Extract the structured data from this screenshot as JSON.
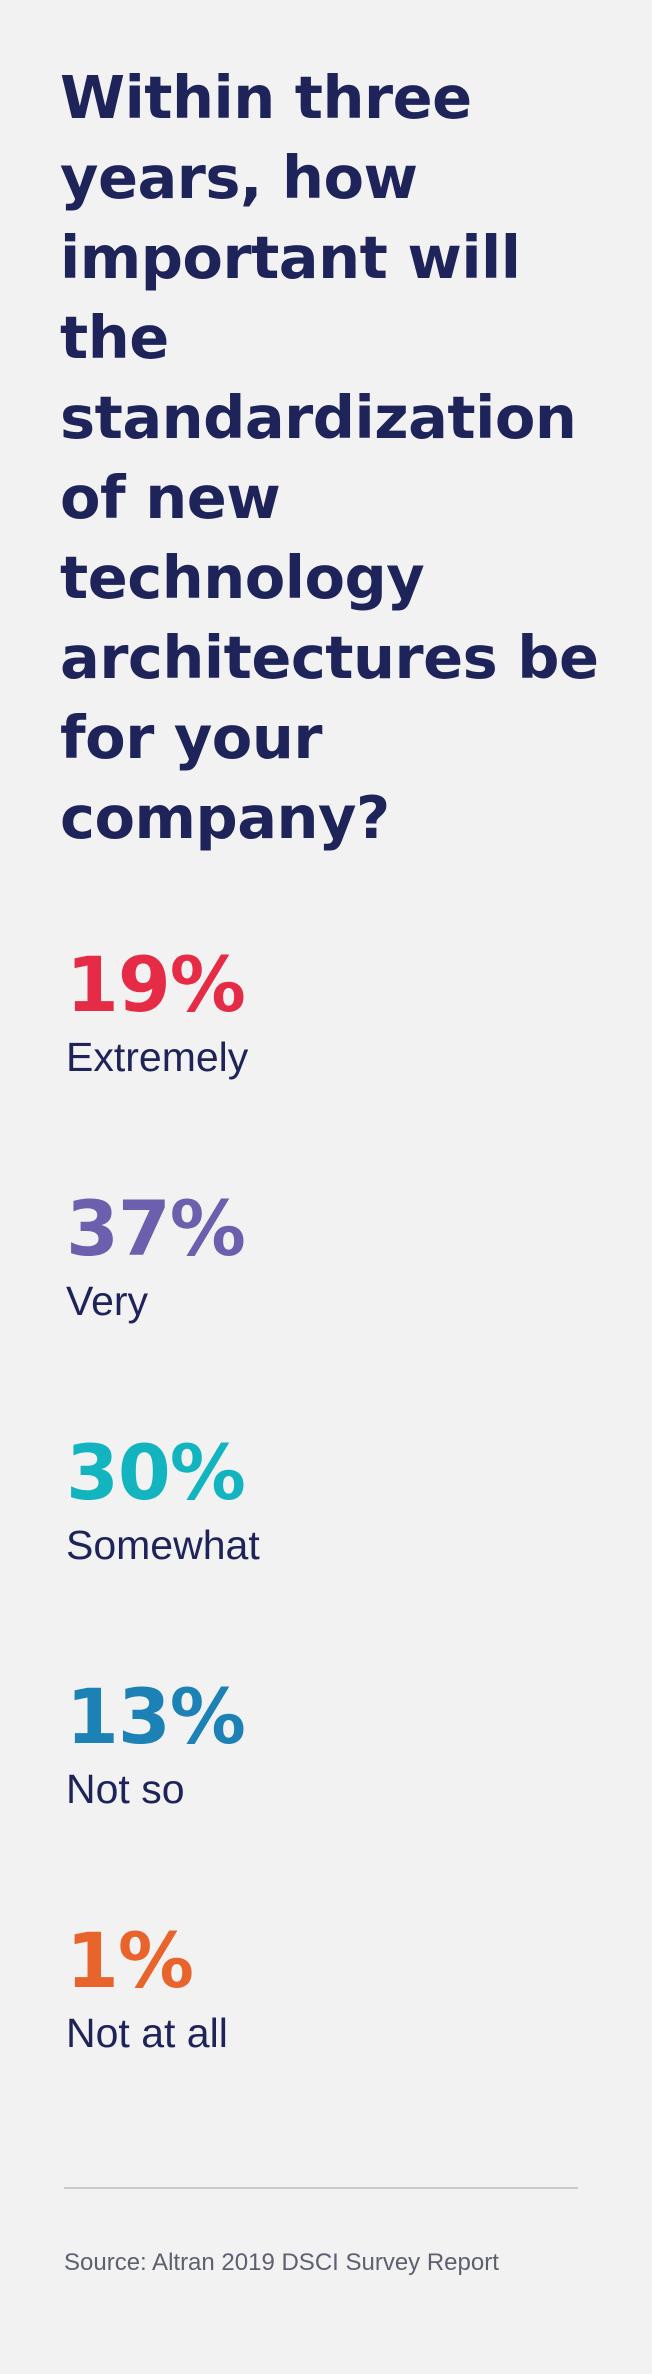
{
  "title": "Within three years, how important will the standardization of new technology architectures be for your company?",
  "chart_data": {
    "type": "table",
    "title": "Within three years, how important will the standardization of new technology architectures be for your company?",
    "categories": [
      "Extremely",
      "Very",
      "Somewhat",
      "Not so",
      "Not at all"
    ],
    "values": [
      19,
      37,
      30,
      13,
      1
    ],
    "value_labels": [
      "19%",
      "37%",
      "30%",
      "13%",
      "1%"
    ],
    "colors": [
      "#e52b45",
      "#6b5fae",
      "#12b5bf",
      "#1c82b6",
      "#e8642c"
    ]
  },
  "source": "Source: Altran 2019 DSCI Survey Report"
}
